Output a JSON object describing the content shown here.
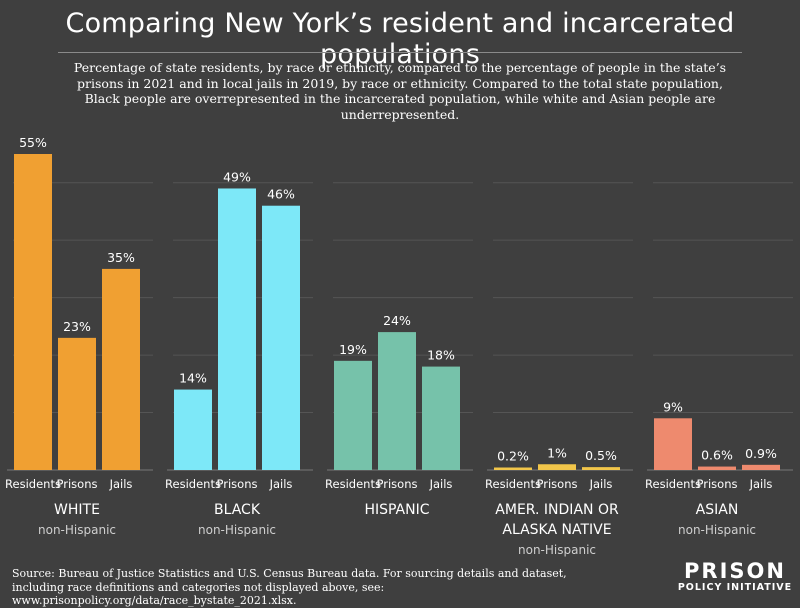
{
  "title": "Comparing New York’s resident and incarcerated populations",
  "subtitle": "Percentage of state residents, by race or ethnicity, compared to the percentage of people in the state’s prisons in 2021 and in local jails in 2019, by race or ethnicity. Compared to the total state population, Black people are overrepresented in the incarcerated population, while white and Asian people are underrepresented.",
  "source": "Source: Bureau of Justice Statistics and U.S. Census Bureau data. For sourcing details and dataset, including race definitions and categories not displayed above, see: www.prisonpolicy.org/data/race_bystate_2021.xlsx.",
  "logo": {
    "line1": "PRISON",
    "line2": "POLICY INITIATIVE"
  },
  "chart_data": {
    "type": "bar",
    "ylim": [
      0,
      55
    ],
    "grid": true,
    "bar_labels": [
      "Residents",
      "Prisons",
      "Jails"
    ],
    "groups": [
      {
        "name": "WHITE",
        "sub": "non-Hispanic",
        "color": "#f0a032",
        "values": [
          55,
          23,
          35
        ],
        "labels": [
          "55%",
          "23%",
          "35%"
        ]
      },
      {
        "name": "BLACK",
        "sub": "non-Hispanic",
        "color": "#7de8f8",
        "values": [
          14,
          49,
          46
        ],
        "labels": [
          "14%",
          "49%",
          "46%"
        ]
      },
      {
        "name": "HISPANIC",
        "sub": "",
        "color": "#76c2aa",
        "values": [
          19,
          24,
          18
        ],
        "labels": [
          "19%",
          "24%",
          "18%"
        ]
      },
      {
        "name": "AMER. INDIAN OR ALASKA NATIVE",
        "name_lines": [
          "AMER. INDIAN OR",
          "ALASKA NATIVE"
        ],
        "sub": "non-Hispanic",
        "color": "#f2c64a",
        "values": [
          0.2,
          1,
          0.5
        ],
        "labels": [
          "0.2%",
          "1%",
          "0.5%"
        ]
      },
      {
        "name": "ASIAN",
        "sub": "non-Hispanic",
        "color": "#ee8a6e",
        "values": [
          9,
          0.6,
          0.9
        ],
        "labels": [
          "9%",
          "0.6%",
          "0.9%"
        ]
      }
    ]
  }
}
